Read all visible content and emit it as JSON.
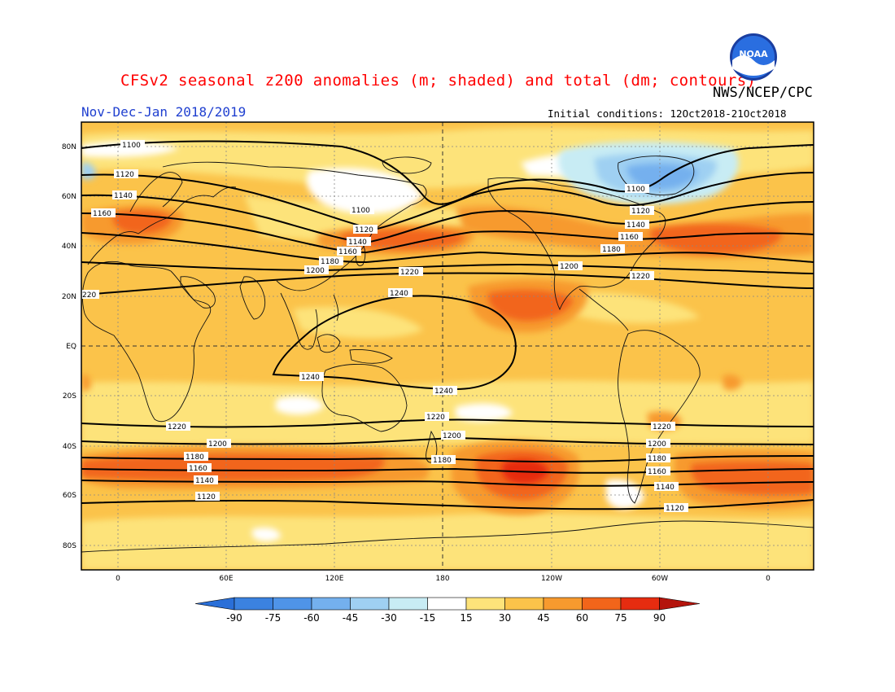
{
  "header": {
    "title": "CFSv2 seasonal z200 anomalies (m; shaded) and total (dm; contours)",
    "agency": "NWS/NCEP/CPC",
    "period": "Nov-Dec-Jan 2018/2019",
    "initial_conditions": "Initial conditions: 12Oct2018-21Oct2018",
    "logo_text": "NOAA"
  },
  "map": {
    "lat_labels": [
      "80N",
      "60N",
      "40N",
      "20N",
      "EQ",
      "20S",
      "40S",
      "60S",
      "80S"
    ],
    "lon_labels": [
      "0",
      "60E",
      "120E",
      "180",
      "120W",
      "60W",
      "0"
    ],
    "contour_labels": [
      "1100",
      "1120",
      "1140",
      "1160",
      "1180",
      "1200",
      "1220",
      "1240"
    ]
  },
  "colorbar": {
    "levels": [
      "-90",
      "-75",
      "-60",
      "-45",
      "-30",
      "-15",
      "15",
      "30",
      "45",
      "60",
      "75",
      "90"
    ],
    "colors": [
      "#2a6fd8",
      "#3b82e0",
      "#4f94e8",
      "#74b0ee",
      "#9fd0f2",
      "#c8ecf4",
      "#ffffff",
      "#fde37a",
      "#fbc34a",
      "#f79a2e",
      "#f2651a",
      "#e62c10",
      "#b4140c"
    ]
  }
}
